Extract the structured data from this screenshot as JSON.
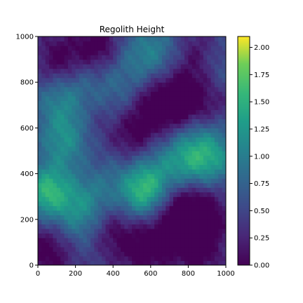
{
  "chart_data": {
    "type": "heatmap",
    "title": "Regolith Height",
    "xlabel": "",
    "ylabel": "",
    "xlim": [
      0,
      1000
    ],
    "ylim": [
      0,
      1000
    ],
    "x_ticks": [
      0,
      200,
      400,
      600,
      800,
      1000
    ],
    "y_ticks": [
      0,
      200,
      400,
      600,
      800,
      1000
    ],
    "colorbar": {
      "colormap": "viridis",
      "range": [
        0.0,
        2.1
      ],
      "ticks": [
        "0.00",
        "0.25",
        "0.50",
        "0.75",
        "1.00",
        "1.25",
        "1.50",
        "1.75",
        "2.00"
      ]
    },
    "grid": false,
    "features": [
      {
        "x": 880,
        "y": 480,
        "amplitude": 1.2,
        "spread": 120,
        "kind": "ridge"
      },
      {
        "x": 570,
        "y": 320,
        "amplitude": 1.1,
        "spread": 90,
        "kind": "ridge"
      },
      {
        "x": 40,
        "y": 320,
        "amplitude": 0.9,
        "spread": 80,
        "kind": "ridge"
      },
      {
        "x": 230,
        "y": 220,
        "amplitude": 0.95,
        "spread": 130,
        "kind": "ridge"
      },
      {
        "x": 150,
        "y": 760,
        "amplitude": 0.8,
        "spread": 110,
        "kind": "ridge"
      },
      {
        "x": 160,
        "y": 550,
        "amplitude": 0.75,
        "spread": 100,
        "kind": "ridge"
      },
      {
        "x": 610,
        "y": 900,
        "amplitude": 0.75,
        "spread": 110,
        "kind": "ridge"
      },
      {
        "x": 400,
        "y": 720,
        "amplitude": 0.55,
        "spread": 120,
        "kind": "ridge"
      },
      {
        "x": 930,
        "y": 860,
        "amplitude": 0.5,
        "spread": 100,
        "kind": "ridge"
      },
      {
        "x": 700,
        "y": 420,
        "amplitude": 0.55,
        "spread": 130,
        "kind": "ridge"
      },
      {
        "x": 320,
        "y": 430,
        "amplitude": 0.45,
        "spread": 120,
        "kind": "ridge"
      },
      {
        "x": 120,
        "y": 880,
        "amplitude": -0.8,
        "spread": 90,
        "kind": "crater"
      },
      {
        "x": 660,
        "y": 720,
        "amplitude": -0.9,
        "spread": 120,
        "kind": "crater"
      },
      {
        "x": 280,
        "y": 650,
        "amplitude": -0.6,
        "spread": 110,
        "kind": "crater"
      },
      {
        "x": 260,
        "y": 430,
        "amplitude": -0.5,
        "spread": 90,
        "kind": "crater"
      },
      {
        "x": 370,
        "y": 160,
        "amplitude": -0.7,
        "spread": 100,
        "kind": "crater"
      },
      {
        "x": 80,
        "y": 80,
        "amplitude": -0.7,
        "spread": 110,
        "kind": "crater"
      },
      {
        "x": 720,
        "y": 250,
        "amplitude": -0.7,
        "spread": 110,
        "kind": "crater"
      },
      {
        "x": 870,
        "y": 280,
        "amplitude": -0.7,
        "spread": 110,
        "kind": "crater"
      },
      {
        "x": 880,
        "y": 700,
        "amplitude": -0.6,
        "spread": 120,
        "kind": "crater"
      },
      {
        "x": 860,
        "y": 920,
        "amplitude": -0.5,
        "spread": 90,
        "kind": "crater"
      },
      {
        "x": 490,
        "y": 560,
        "amplitude": -0.6,
        "spread": 100,
        "kind": "crater"
      },
      {
        "x": 580,
        "y": 80,
        "amplitude": -0.5,
        "spread": 100,
        "kind": "crater"
      },
      {
        "x": 860,
        "y": 80,
        "amplitude": -0.5,
        "spread": 90,
        "kind": "crater"
      },
      {
        "x": 320,
        "y": 960,
        "amplitude": -0.6,
        "spread": 80,
        "kind": "crater"
      }
    ],
    "baseline": 0.45
  }
}
